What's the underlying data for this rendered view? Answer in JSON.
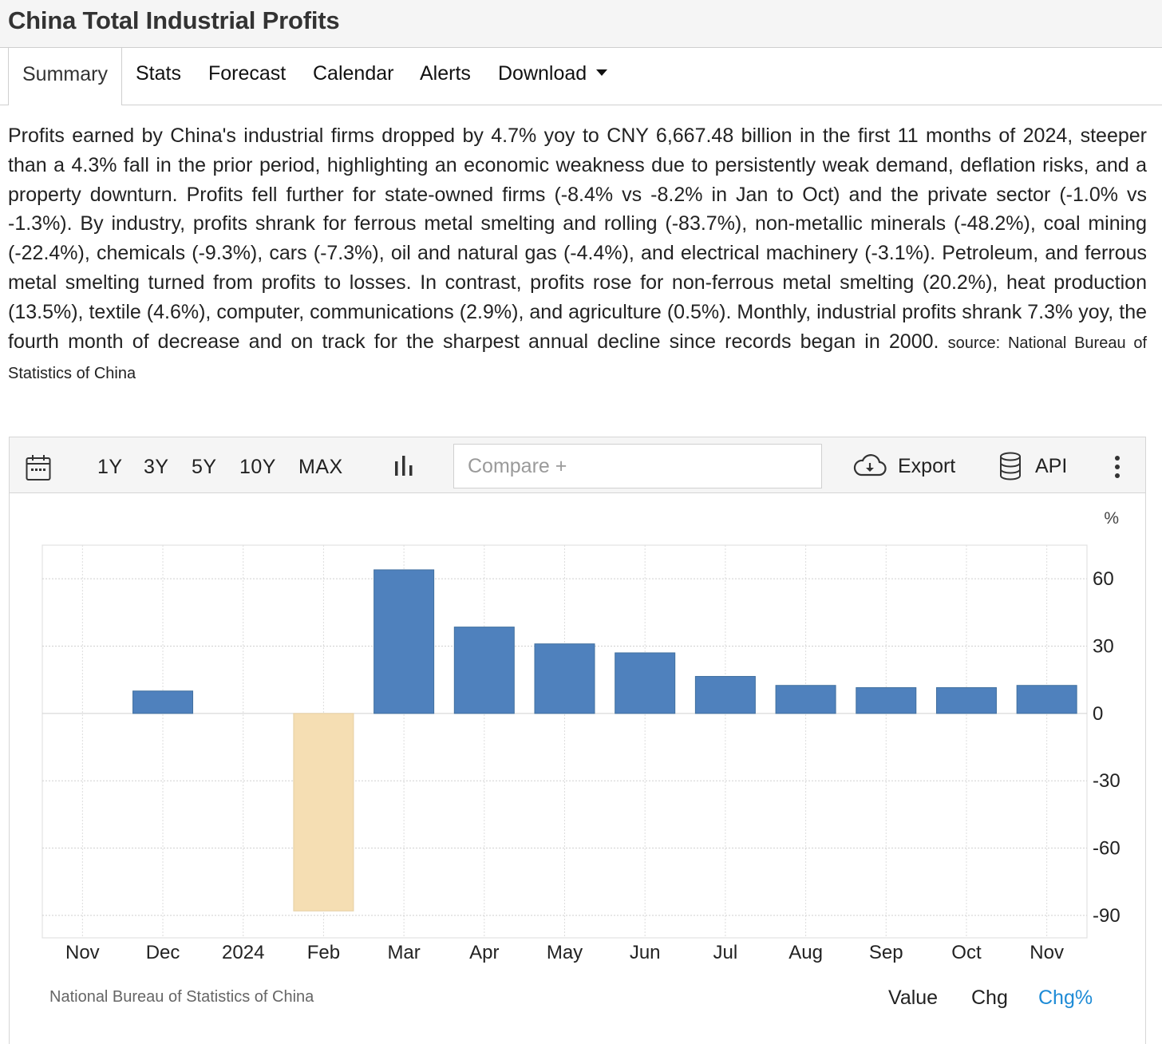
{
  "page": {
    "title": "China Total Industrial Profits"
  },
  "tabs": [
    {
      "label": "Summary",
      "active": true
    },
    {
      "label": "Stats"
    },
    {
      "label": "Forecast"
    },
    {
      "label": "Calendar"
    },
    {
      "label": "Alerts"
    },
    {
      "label": "Download"
    }
  ],
  "summary": {
    "text": "Profits earned by China's industrial firms dropped by 4.7% yoy to CNY 6,667.48 billion in the first 11 months of 2024, steeper than a 4.3% fall in the prior period, highlighting an economic weakness due to persistently weak demand, deflation risks, and a property downturn. Profits fell further for state-owned firms (-8.4% vs -8.2% in Jan to Oct) and the private sector (-1.0% vs -1.3%). By industry, profits shrank for ferrous metal smelting and rolling (-83.7%), non-metallic minerals (-48.2%), coal mining (-22.4%), chemicals (-9.3%), cars (-7.3%), oil and natural gas (-4.4%), and electrical machinery (-3.1%). Petroleum, and ferrous metal smelting turned from profits to losses. In contrast, profits rose for non-ferrous metal smelting (20.2%), heat production (13.5%), textile (4.6%), computer, communications (2.9%), and agriculture (0.5%). Monthly, industrial profits shrank 7.3% yoy, the fourth month of decrease and on track for the sharpest annual decline since records began in 2000.",
    "source": "source: National Bureau of Statistics of China"
  },
  "toolbar": {
    "calendar_icon": "calendar-icon",
    "ranges": [
      "1Y",
      "3Y",
      "5Y",
      "10Y",
      "MAX"
    ],
    "chart_type_icon": "bar-chart-icon",
    "compare_placeholder": "Compare +",
    "export_label": "Export",
    "export_icon": "cloud-download-icon",
    "api_label": "API",
    "api_icon": "database-icon",
    "more_icon": "vertical-ellipsis-icon"
  },
  "chart_footer": {
    "source": "National Bureau of Statistics of China",
    "modes": [
      "Value",
      "Chg",
      "Chg%"
    ],
    "active_mode": "Chg%"
  },
  "colors": {
    "positive_bar": "#4f81bd",
    "negative_bar": "#f5deb3",
    "active_mode": "#1e8bd6"
  },
  "chart_data": {
    "type": "bar",
    "unit": "%",
    "categories": [
      "Nov",
      "Dec",
      "2024",
      "Feb",
      "Mar",
      "Apr",
      "May",
      "Jun",
      "Jul",
      "Aug",
      "Sep",
      "Oct",
      "Nov"
    ],
    "values": [
      null,
      10,
      null,
      -88,
      64,
      38.5,
      31,
      27,
      16.5,
      12.5,
      11.5,
      11.5,
      12.5
    ],
    "ylim": [
      -100,
      75
    ],
    "yticks": [
      60,
      30,
      0,
      -30,
      -60,
      -90
    ],
    "grid": true
  }
}
